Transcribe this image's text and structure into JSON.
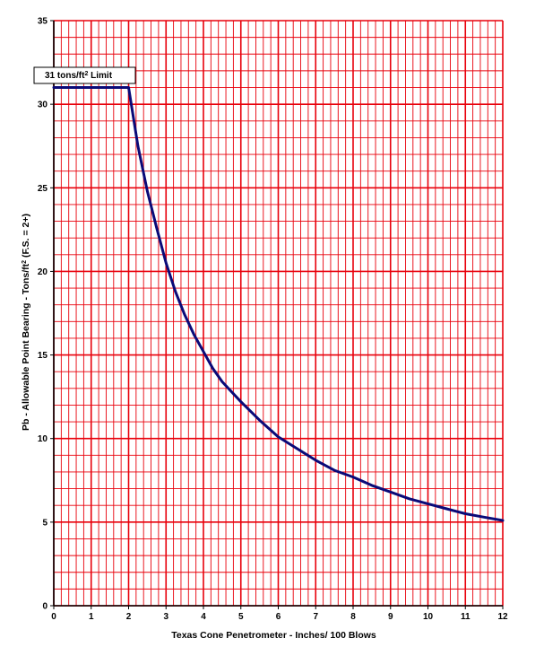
{
  "chart_data": {
    "type": "line",
    "title": "",
    "xlabel": "Texas Cone Penetrometer - Inches/ 100 Blows",
    "ylabel_main": "Pb - Allowable Point Bearing - Tons/ft",
    "ylabel_sup": "2",
    "ylabel_tail": " (F.S. = 2+)",
    "xlim": [
      0,
      12
    ],
    "ylim": [
      0,
      35
    ],
    "x_ticks": [
      "0",
      "1",
      "2",
      "3",
      "4",
      "5",
      "6",
      "7",
      "8",
      "9",
      "10",
      "11",
      "12"
    ],
    "y_ticks": [
      "0",
      "5",
      "10",
      "15",
      "20",
      "25",
      "30",
      "35"
    ],
    "grid": true,
    "minor_grid_x_step": 0.2,
    "minor_grid_y_step": 1,
    "colors": {
      "grid": "#e8000b",
      "line": "#0a0a78",
      "axis": "#000000"
    },
    "series": [
      {
        "x": [
          0,
          2,
          2.25,
          2.5,
          2.75,
          3,
          3.25,
          3.5,
          3.75,
          4,
          4.25,
          4.5,
          5,
          5.5,
          6,
          6.5,
          7,
          7.5,
          8,
          8.5,
          9,
          9.5,
          10,
          10.5,
          11,
          11.5,
          12
        ],
        "y": [
          31,
          31,
          27.5,
          24.8,
          22.6,
          20.5,
          18.8,
          17.4,
          16.2,
          15.2,
          14.2,
          13.4,
          12.2,
          11.1,
          10.1,
          9.4,
          8.7,
          8.1,
          7.7,
          7.2,
          6.8,
          6.4,
          6.1,
          5.8,
          5.5,
          5.3,
          5.1
        ]
      }
    ],
    "annotations": [
      {
        "text_main": "31 tons/ft",
        "text_sup": "2",
        "text_tail": " Limit",
        "x": 1,
        "y": 31
      }
    ]
  }
}
